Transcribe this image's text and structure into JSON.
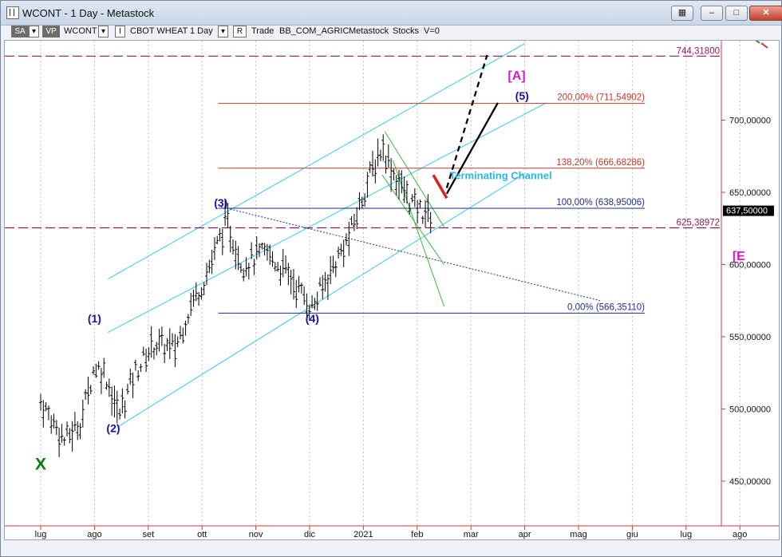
{
  "window": {
    "title": "WCONT - 1 Day - Metastock"
  },
  "toolbar": {
    "sa": "SA",
    "vp": "VP",
    "symbol": "WCONT",
    "name": "CBOT WHEAT",
    "period": "1 Day",
    "trade": "Trade",
    "workspace": "BB_COM_AGRIC",
    "source": "Metastock",
    "kind": "Stocks",
    "vol": "V=0"
  },
  "chart_data": {
    "type": "bar",
    "title": "",
    "x_labels": [
      "lug",
      "ago",
      "set",
      "ott",
      "nov",
      "dic",
      "2021",
      "feb",
      "mar",
      "apr",
      "mag",
      "giu",
      "lug",
      "ago"
    ],
    "y_ticks": [
      "450,00000",
      "500,00000",
      "550,00000",
      "600,00000",
      "650,00000",
      "700,00000"
    ],
    "y_tick_values": [
      450,
      500,
      550,
      600,
      650,
      700
    ],
    "ylim": [
      419,
      755
    ],
    "current_price": {
      "value": 637.5,
      "label": "637,50000"
    },
    "levels": [
      {
        "value": 744.318,
        "label": "744,31800",
        "style": "dashed",
        "color": "#8b1a5a"
      },
      {
        "value": 625.38972,
        "label": "625,38972",
        "style": "dashed",
        "color": "#8b1a5a"
      }
    ],
    "fib_levels": [
      {
        "value": 711.54902,
        "label": "200,00% (711,54902)",
        "color": "#c0392b"
      },
      {
        "value": 666.68286,
        "label": "138,20% (666,68286)",
        "color": "#c0392b"
      },
      {
        "value": 638.95006,
        "label": "100,00% (638,95006)",
        "color": "#1f2d86"
      },
      {
        "value": 566.3511,
        "label": "0,00% (566,35110)",
        "color": "#1f2d86"
      }
    ],
    "wave_labels": [
      {
        "text": "X",
        "x": 0.0,
        "y": 458,
        "color": "#0d7a0d"
      },
      {
        "text": "(1)",
        "x": 1.0,
        "y": 560,
        "color": "#1414a0"
      },
      {
        "text": "(2)",
        "x": 1.35,
        "y": 484,
        "color": "#1414a0"
      },
      {
        "text": "(3)",
        "x": 3.35,
        "y": 640,
        "color": "#1414a0"
      },
      {
        "text": "(4)",
        "x": 5.05,
        "y": 560,
        "color": "#1414a0"
      },
      {
        "text": "(5)",
        "x": 8.95,
        "y": 714,
        "color": "#1414a0"
      },
      {
        "text": "[A]",
        "x": 8.85,
        "y": 728,
        "color": "#d020c0"
      },
      {
        "text": "[E",
        "x": 12.98,
        "y": 603,
        "color": "#d020c0"
      }
    ],
    "annotations": [
      {
        "text": "Terminating Channel",
        "x": 7.6,
        "y": 659,
        "color": "#29b6e8"
      }
    ],
    "price_path": [
      {
        "x": 0.0,
        "y": 505
      },
      {
        "x": 0.45,
        "y": 478
      },
      {
        "x": 0.75,
        "y": 492
      },
      {
        "x": 1.0,
        "y": 530
      },
      {
        "x": 1.2,
        "y": 525
      },
      {
        "x": 1.45,
        "y": 495
      },
      {
        "x": 1.75,
        "y": 525
      },
      {
        "x": 2.1,
        "y": 545
      },
      {
        "x": 2.5,
        "y": 542
      },
      {
        "x": 2.8,
        "y": 573
      },
      {
        "x": 3.05,
        "y": 590
      },
      {
        "x": 3.45,
        "y": 630
      },
      {
        "x": 3.75,
        "y": 600
      },
      {
        "x": 4.2,
        "y": 608
      },
      {
        "x": 4.6,
        "y": 593
      },
      {
        "x": 5.05,
        "y": 570
      },
      {
        "x": 5.4,
        "y": 596
      },
      {
        "x": 5.75,
        "y": 620
      },
      {
        "x": 6.05,
        "y": 655
      },
      {
        "x": 6.35,
        "y": 682
      },
      {
        "x": 6.6,
        "y": 660
      },
      {
        "x": 6.95,
        "y": 640
      },
      {
        "x": 7.25,
        "y": 634
      }
    ]
  }
}
